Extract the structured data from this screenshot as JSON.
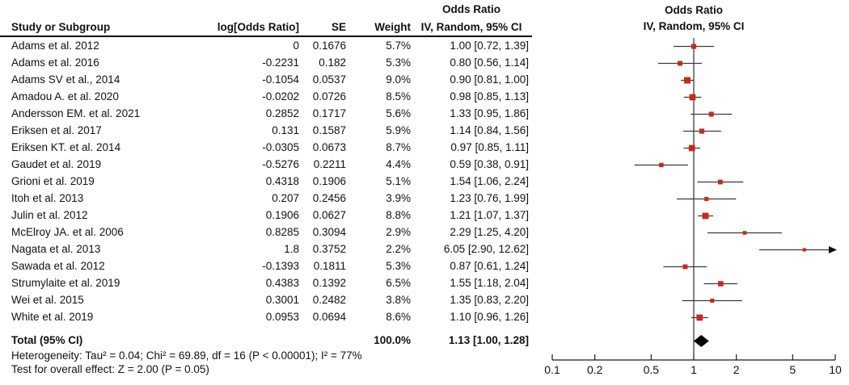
{
  "table": {
    "headers": {
      "study": "Study or Subgroup",
      "log_or": "log[Odds Ratio]",
      "se": "SE",
      "weight": "Weight",
      "or_ci_top": "Odds Ratio",
      "or_ci_sub": "IV, Random, 95% CI",
      "plot_top": "Odds Ratio",
      "plot_sub": "IV, Random, 95% CI"
    },
    "total": {
      "label": "Total (95% CI)",
      "weight": "100.0%",
      "ci_text": "1.13 [1.00, 1.28]"
    },
    "footer": {
      "heterogeneity": "Heterogeneity: Tau² = 0.04; Chi² = 69.89, df = 16 (P < 0.00001); I² = 77%",
      "overall_effect": "Test for overall effect: Z = 2.00 (P = 0.05)"
    }
  },
  "chart_data": {
    "type": "forest",
    "x_scale": "log10",
    "x_range": [
      0.1,
      10
    ],
    "x_ticks": [
      0.1,
      0.2,
      0.5,
      1,
      2,
      5,
      10
    ],
    "x_tick_labels": [
      "0.1",
      "0.2",
      "0.5",
      "1",
      "2",
      "5",
      "10"
    ],
    "null_line": 1,
    "marker_color": "#c9281a",
    "line_color": "#3a3a3a",
    "diamond_color": "#000000",
    "axis_color": "#1a1a1a",
    "studies": [
      {
        "name": "Adams et al. 2012",
        "log_or": "0",
        "se": "0.1676",
        "weight": "5.7%",
        "weight_value": 5.7,
        "or": 1.0,
        "ci_low": 0.72,
        "ci_high": 1.39,
        "ci_text": "1.00 [0.72, 1.39]"
      },
      {
        "name": "Adams et al. 2016",
        "log_or": "-0.2231",
        "se": "0.182",
        "weight": "5.3%",
        "weight_value": 5.3,
        "or": 0.8,
        "ci_low": 0.56,
        "ci_high": 1.14,
        "ci_text": "0.80 [0.56, 1.14]"
      },
      {
        "name": "Adams SV et al., 2014",
        "log_or": "-0.1054",
        "se": "0.0537",
        "weight": "9.0%",
        "weight_value": 9.0,
        "or": 0.9,
        "ci_low": 0.81,
        "ci_high": 1.0,
        "ci_text": "0.90 [0.81, 1.00]"
      },
      {
        "name": "Amadou A. et al. 2020",
        "log_or": "-0.0202",
        "se": "0.0726",
        "weight": "8.5%",
        "weight_value": 8.5,
        "or": 0.98,
        "ci_low": 0.85,
        "ci_high": 1.13,
        "ci_text": "0.98 [0.85, 1.13]"
      },
      {
        "name": "Andersson EM. et al. 2021",
        "log_or": "0.2852",
        "se": "0.1717",
        "weight": "5.6%",
        "weight_value": 5.6,
        "or": 1.33,
        "ci_low": 0.95,
        "ci_high": 1.86,
        "ci_text": "1.33 [0.95, 1.86]"
      },
      {
        "name": "Eriksen et al. 2017",
        "log_or": "0.131",
        "se": "0.1587",
        "weight": "5.9%",
        "weight_value": 5.9,
        "or": 1.14,
        "ci_low": 0.84,
        "ci_high": 1.56,
        "ci_text": "1.14 [0.84, 1.56]"
      },
      {
        "name": "Eriksen KT. et al. 2014",
        "log_or": "-0.0305",
        "se": "0.0673",
        "weight": "8.7%",
        "weight_value": 8.7,
        "or": 0.97,
        "ci_low": 0.85,
        "ci_high": 1.11,
        "ci_text": "0.97 [0.85, 1.11]"
      },
      {
        "name": "Gaudet et al. 2019",
        "log_or": "-0.5276",
        "se": "0.2211",
        "weight": "4.4%",
        "weight_value": 4.4,
        "or": 0.59,
        "ci_low": 0.38,
        "ci_high": 0.91,
        "ci_text": "0.59 [0.38, 0.91]"
      },
      {
        "name": "Grioni et al. 2019",
        "log_or": "0.4318",
        "se": "0.1906",
        "weight": "5.1%",
        "weight_value": 5.1,
        "or": 1.54,
        "ci_low": 1.06,
        "ci_high": 2.24,
        "ci_text": "1.54 [1.06, 2.24]"
      },
      {
        "name": "Itoh et al. 2013",
        "log_or": "0.207",
        "se": "0.2456",
        "weight": "3.9%",
        "weight_value": 3.9,
        "or": 1.23,
        "ci_low": 0.76,
        "ci_high": 1.99,
        "ci_text": "1.23 [0.76, 1.99]"
      },
      {
        "name": "Julin et al. 2012",
        "log_or": "0.1906",
        "se": "0.0627",
        "weight": "8.8%",
        "weight_value": 8.8,
        "or": 1.21,
        "ci_low": 1.07,
        "ci_high": 1.37,
        "ci_text": "1.21 [1.07, 1.37]"
      },
      {
        "name": "McElroy JA. et al. 2006",
        "log_or": "0.8285",
        "se": "0.3094",
        "weight": "2.9%",
        "weight_value": 2.9,
        "or": 2.29,
        "ci_low": 1.25,
        "ci_high": 4.2,
        "ci_text": "2.29 [1.25, 4.20]"
      },
      {
        "name": "Nagata et al. 2013",
        "log_or": "1.8",
        "se": "0.3752",
        "weight": "2.2%",
        "weight_value": 2.2,
        "or": 6.05,
        "ci_low": 2.9,
        "ci_high": 12.62,
        "ci_text": "6.05 [2.90, 12.62]"
      },
      {
        "name": "Sawada et al. 2012",
        "log_or": "-0.1393",
        "se": "0.1811",
        "weight": "5.3%",
        "weight_value": 5.3,
        "or": 0.87,
        "ci_low": 0.61,
        "ci_high": 1.24,
        "ci_text": "0.87 [0.61, 1.24]"
      },
      {
        "name": "Strumylaite et al. 2019",
        "log_or": "0.4383",
        "se": "0.1392",
        "weight": "6.5%",
        "weight_value": 6.5,
        "or": 1.55,
        "ci_low": 1.18,
        "ci_high": 2.04,
        "ci_text": "1.55 [1.18, 2.04]"
      },
      {
        "name": "Wei et al. 2015",
        "log_or": "0.3001",
        "se": "0.2482",
        "weight": "3.8%",
        "weight_value": 3.8,
        "or": 1.35,
        "ci_low": 0.83,
        "ci_high": 2.2,
        "ci_text": "1.35 [0.83, 2.20]"
      },
      {
        "name": "White et al. 2019",
        "log_or": "0.0953",
        "se": "0.0694",
        "weight": "8.6%",
        "weight_value": 8.6,
        "or": 1.1,
        "ci_low": 0.96,
        "ci_high": 1.26,
        "ci_text": "1.10 [0.96, 1.26]"
      }
    ],
    "total": {
      "or": 1.13,
      "ci_low": 1.0,
      "ci_high": 1.28
    }
  }
}
